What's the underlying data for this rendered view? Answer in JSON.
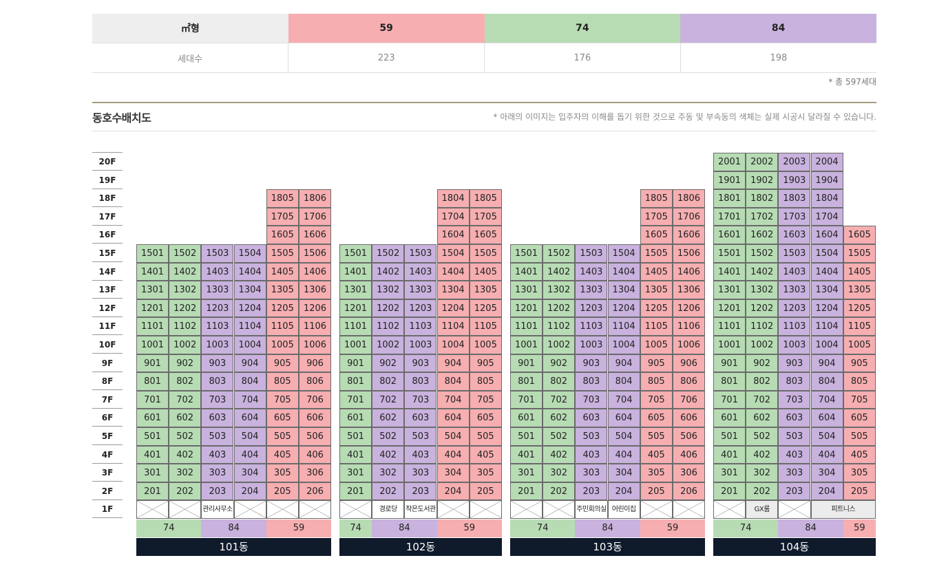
{
  "summary": {
    "header": [
      "㎡형",
      "59",
      "74",
      "84"
    ],
    "row": [
      "세대수",
      "223",
      "176",
      "198"
    ],
    "total": "* 총 597세대"
  },
  "section": {
    "title": "동호수배치도",
    "note": "* 아래의 이미지는 입주자의 이해를 돕기 위한 것으로 주동 및 부속동의 색체는 실제 시공시 달라질 수 있습니다."
  },
  "colors": {
    "t74": "#b7dcb4",
    "t84": "#c9b2de",
    "t59": "#f6aeb1",
    "building_label": "#0f1a2b",
    "summary_head": "#eeeeee"
  },
  "floors": [
    "20F",
    "19F",
    "18F",
    "17F",
    "16F",
    "15F",
    "14F",
    "13F",
    "12F",
    "11F",
    "10F",
    "9F",
    "8F",
    "7F",
    "6F",
    "5F",
    "4F",
    "3F",
    "2F",
    "1F"
  ],
  "buildings": [
    {
      "name": "101동",
      "units": [
        {
          "line": "01",
          "type": "74",
          "top": 15
        },
        {
          "line": "02",
          "type": "74",
          "top": 15
        },
        {
          "line": "03",
          "type": "84",
          "top": 15
        },
        {
          "line": "04",
          "type": "84",
          "top": 15
        },
        {
          "line": "05",
          "type": "59",
          "top": 18
        },
        {
          "line": "06",
          "type": "59",
          "top": 18
        }
      ],
      "ground": [
        {
          "kind": "x",
          "span": 1
        },
        {
          "kind": "x",
          "span": 1
        },
        {
          "kind": "label",
          "text": "관리사무소",
          "span": 1
        },
        {
          "kind": "x",
          "span": 1
        },
        {
          "kind": "x",
          "span": 1
        },
        {
          "kind": "x",
          "span": 1
        }
      ],
      "types": [
        {
          "label": "74",
          "type": "74",
          "span": 2
        },
        {
          "label": "84",
          "type": "84",
          "span": 2
        },
        {
          "label": "59",
          "type": "59",
          "span": 2
        }
      ]
    },
    {
      "name": "102동",
      "units": [
        {
          "line": "01",
          "type": "74",
          "top": 15
        },
        {
          "line": "02",
          "type": "84",
          "top": 15
        },
        {
          "line": "03",
          "type": "84",
          "top": 15
        },
        {
          "line": "04",
          "type": "59",
          "top": 18
        },
        {
          "line": "05",
          "type": "59",
          "top": 18
        }
      ],
      "ground": [
        {
          "kind": "x",
          "span": 1
        },
        {
          "kind": "label",
          "text": "경로당",
          "span": 1
        },
        {
          "kind": "label",
          "text": "작은도서관",
          "span": 1
        },
        {
          "kind": "x",
          "span": 1
        },
        {
          "kind": "x",
          "span": 1
        }
      ],
      "types": [
        {
          "label": "74",
          "type": "74",
          "span": 1
        },
        {
          "label": "84",
          "type": "84",
          "span": 2
        },
        {
          "label": "59",
          "type": "59",
          "span": 2
        }
      ]
    },
    {
      "name": "103동",
      "units": [
        {
          "line": "01",
          "type": "74",
          "top": 15
        },
        {
          "line": "02",
          "type": "74",
          "top": 15
        },
        {
          "line": "03",
          "type": "84",
          "top": 15
        },
        {
          "line": "04",
          "type": "84",
          "top": 15
        },
        {
          "line": "05",
          "type": "59",
          "top": 18
        },
        {
          "line": "06",
          "type": "59",
          "top": 18
        }
      ],
      "ground": [
        {
          "kind": "x",
          "span": 1
        },
        {
          "kind": "x",
          "span": 1
        },
        {
          "kind": "label",
          "text": "주민회의실",
          "span": 1
        },
        {
          "kind": "label",
          "text": "어린이집",
          "span": 1
        },
        {
          "kind": "x",
          "span": 1
        },
        {
          "kind": "x",
          "span": 1
        }
      ],
      "types": [
        {
          "label": "74",
          "type": "74",
          "span": 2
        },
        {
          "label": "84",
          "type": "84",
          "span": 2
        },
        {
          "label": "59",
          "type": "59",
          "span": 2
        }
      ]
    },
    {
      "name": "104동",
      "units": [
        {
          "line": "01",
          "type": "74",
          "top": 20
        },
        {
          "line": "02",
          "type": "74",
          "top": 20
        },
        {
          "line": "03",
          "type": "84",
          "top": 20
        },
        {
          "line": "04",
          "type": "84",
          "top": 20
        },
        {
          "line": "05",
          "type": "59",
          "top": 16
        }
      ],
      "ground": [
        {
          "kind": "x",
          "span": 1
        },
        {
          "kind": "label",
          "text": "GX룸",
          "span": 1,
          "grey": true
        },
        {
          "kind": "x",
          "span": 1
        },
        {
          "kind": "label",
          "text": "피트니스",
          "span": 2,
          "grey": true
        }
      ],
      "types": [
        {
          "label": "74",
          "type": "74",
          "span": 2
        },
        {
          "label": "84",
          "type": "84",
          "span": 2
        },
        {
          "label": "59",
          "type": "59",
          "span": 1
        }
      ]
    }
  ]
}
